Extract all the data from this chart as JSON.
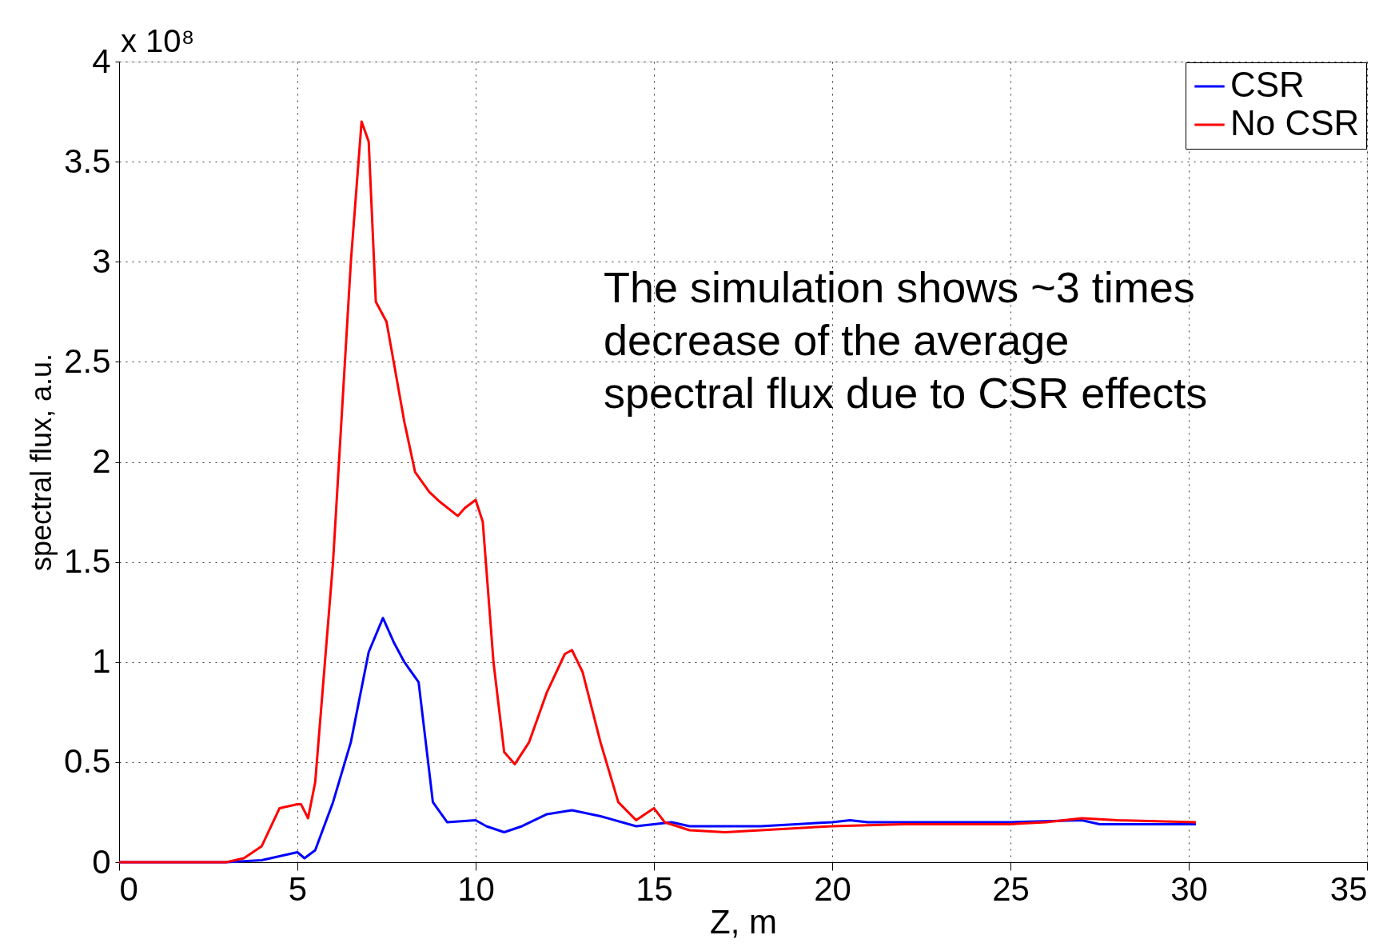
{
  "chart_data": {
    "type": "line",
    "xlabel": "Z, m",
    "ylabel": "spectral flux, a.u.",
    "xlim": [
      0,
      35
    ],
    "xticks": [
      0,
      5,
      10,
      15,
      20,
      25,
      30,
      35
    ],
    "ylim": [
      0,
      4
    ],
    "yticks": [
      0,
      0.5,
      1,
      1.5,
      2,
      2.5,
      3,
      3.5,
      4
    ],
    "grid": true,
    "legend": "top right",
    "line_style": "solid",
    "marker": "none",
    "annotations": [
      "x 10⁸",
      "The simulation shows ~3 times\ndecrease of the average\nspectral flux due to CSR effects"
    ],
    "series": [
      {
        "name": "CSR",
        "color": "#0000ff",
        "x": [
          0,
          3,
          4,
          4.5,
          5,
          5.2,
          5.5,
          6,
          6.5,
          7,
          7.4,
          7.7,
          8,
          8.4,
          8.6,
          8.8,
          9.2,
          10,
          10.3,
          10.8,
          11.3,
          12,
          12.7,
          13.5,
          14.5,
          15.5,
          16,
          18,
          20,
          20.5,
          21,
          25,
          27,
          27.5,
          30.2
        ],
        "values": [
          0,
          0,
          0.01,
          0.03,
          0.05,
          0.02,
          0.06,
          0.3,
          0.6,
          1.05,
          1.22,
          1.1,
          1.0,
          0.9,
          0.6,
          0.3,
          0.2,
          0.21,
          0.18,
          0.15,
          0.18,
          0.24,
          0.26,
          0.23,
          0.18,
          0.2,
          0.18,
          0.18,
          0.2,
          0.21,
          0.2,
          0.2,
          0.21,
          0.19,
          0.19
        ]
      },
      {
        "name": "No CSR",
        "color": "#ff0000",
        "x": [
          0,
          3,
          3.5,
          4,
          4.5,
          5,
          5.1,
          5.3,
          5.5,
          6,
          6.5,
          6.8,
          7.0,
          7.2,
          7.5,
          8,
          8.3,
          8.7,
          9,
          9.5,
          9.7,
          10,
          10.2,
          10.5,
          10.8,
          11.1,
          11.5,
          12,
          12.5,
          12.7,
          13,
          13.5,
          14,
          14.5,
          15,
          15.3,
          16,
          17,
          18,
          20,
          22,
          25,
          26,
          27,
          28,
          30.2
        ],
        "values": [
          0,
          0,
          0.02,
          0.08,
          0.27,
          0.29,
          0.29,
          0.22,
          0.4,
          1.5,
          3.0,
          3.7,
          3.6,
          2.8,
          2.7,
          2.2,
          1.95,
          1.85,
          1.8,
          1.73,
          1.77,
          1.81,
          1.7,
          1.0,
          0.55,
          0.49,
          0.6,
          0.85,
          1.04,
          1.06,
          0.95,
          0.6,
          0.3,
          0.21,
          0.27,
          0.2,
          0.16,
          0.15,
          0.16,
          0.18,
          0.19,
          0.19,
          0.2,
          0.22,
          0.21,
          0.2
        ]
      }
    ]
  }
}
